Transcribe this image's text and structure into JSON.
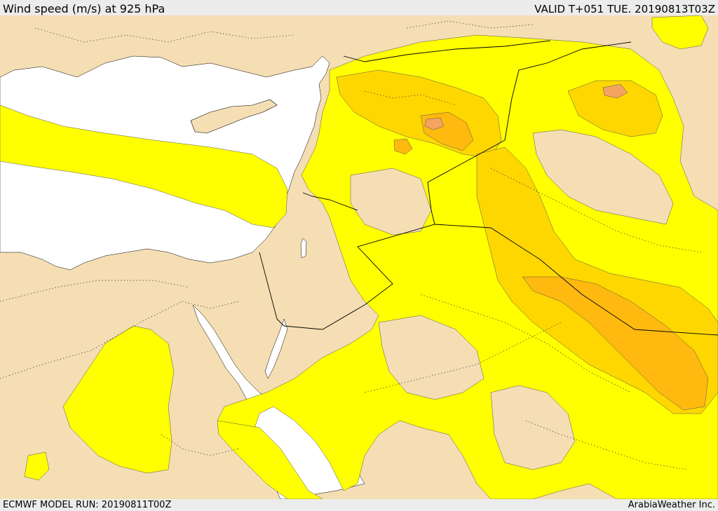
{
  "header": {
    "title": "Wind speed (m/s) at 925 hPa",
    "valid": "VALID T+051 TUE. 20190813T03Z"
  },
  "footer": {
    "model_run": "ECMWF MODEL RUN: 20190811T00Z",
    "brand": "ArabiaWeather Inc."
  },
  "map": {
    "colors": {
      "land_low": "#f5deb3",
      "sea": "#ffffff",
      "band_yellow": "#ffff00",
      "band_gold": "#ffd700",
      "band_orange": "#ffb90f",
      "band_dark_orange": "#f4a460"
    }
  }
}
